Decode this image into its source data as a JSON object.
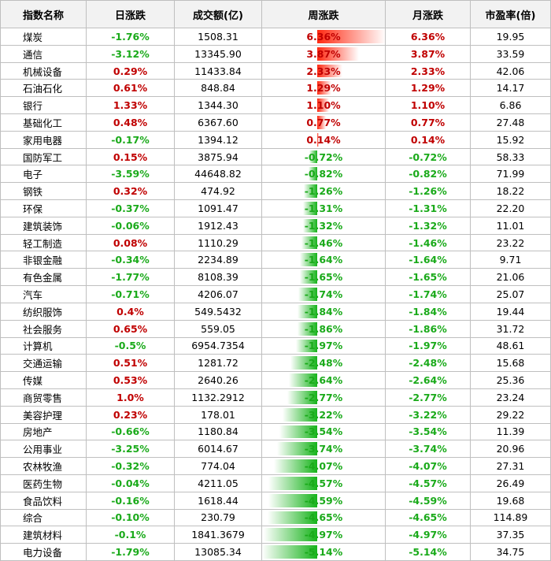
{
  "table": {
    "header": [
      "指数名称",
      "日涨跌",
      "成交额(亿)",
      "周涨跌",
      "月涨跌",
      "市盈率(倍)"
    ],
    "rows": [
      [
        "煤炭",
        "-1.76%",
        "1508.31",
        "6.36%",
        "6.36%",
        "19.95"
      ],
      [
        "通信",
        "-3.12%",
        "13345.90",
        "3.87%",
        "3.87%",
        "33.59"
      ],
      [
        "机械设备",
        "0.29%",
        "11433.84",
        "2.33%",
        "2.33%",
        "42.06"
      ],
      [
        "石油石化",
        "0.61%",
        "848.84",
        "1.29%",
        "1.29%",
        "14.17"
      ],
      [
        "银行",
        "1.33%",
        "1344.30",
        "1.10%",
        "1.10%",
        "6.86"
      ],
      [
        "基础化工",
        "0.48%",
        "6367.60",
        "0.77%",
        "0.77%",
        "27.48"
      ],
      [
        "家用电器",
        "-0.17%",
        "1394.12",
        "0.14%",
        "0.14%",
        "15.92"
      ],
      [
        "国防军工",
        "0.15%",
        "3875.94",
        "-0.72%",
        "-0.72%",
        "58.33"
      ],
      [
        "电子",
        "-3.59%",
        "44648.82",
        "-0.82%",
        "-0.82%",
        "71.99"
      ],
      [
        "钢铁",
        "0.32%",
        "474.92",
        "-1.26%",
        "-1.26%",
        "18.22"
      ],
      [
        "环保",
        "-0.37%",
        "1091.47",
        "-1.31%",
        "-1.31%",
        "22.20"
      ],
      [
        "建筑装饰",
        "-0.06%",
        "1912.43",
        "-1.32%",
        "-1.32%",
        "11.01"
      ],
      [
        "轻工制造",
        "0.08%",
        "1110.29",
        "-1.46%",
        "-1.46%",
        "23.22"
      ],
      [
        "非银金融",
        "-0.34%",
        "2234.89",
        "-1.64%",
        "-1.64%",
        "9.71"
      ],
      [
        "有色金属",
        "-1.77%",
        "8108.39",
        "-1.65%",
        "-1.65%",
        "21.06"
      ],
      [
        "汽车",
        "-0.71%",
        "4206.07",
        "-1.74%",
        "-1.74%",
        "25.07"
      ],
      [
        "纺织服饰",
        "0.4%",
        "549.5432",
        "-1.84%",
        "-1.84%",
        "19.44"
      ],
      [
        "社会服务",
        "0.65%",
        "559.05",
        "-1.86%",
        "-1.86%",
        "31.72"
      ],
      [
        "计算机",
        "-0.5%",
        "6954.7354",
        "-1.97%",
        "-1.97%",
        "48.61"
      ],
      [
        "交通运输",
        "0.51%",
        "1281.72",
        "-2.48%",
        "-2.48%",
        "15.68"
      ],
      [
        "传媒",
        "0.53%",
        "2640.26",
        "-2.64%",
        "-2.64%",
        "25.36"
      ],
      [
        "商贸零售",
        "1.0%",
        "1132.2912",
        "-2.77%",
        "-2.77%",
        "23.24"
      ],
      [
        "美容护理",
        "0.23%",
        "178.01",
        "-3.22%",
        "-3.22%",
        "29.22"
      ],
      [
        "房地产",
        "-0.66%",
        "1180.84",
        "-3.54%",
        "-3.54%",
        "11.39"
      ],
      [
        "公用事业",
        "-3.25%",
        "6014.67",
        "-3.74%",
        "-3.74%",
        "20.96"
      ],
      [
        "农林牧渔",
        "-0.32%",
        "774.04",
        "-4.07%",
        "-4.07%",
        "27.31"
      ],
      [
        "医药生物",
        "-0.04%",
        "4211.05",
        "-4.57%",
        "-4.57%",
        "26.49"
      ],
      [
        "食品饮料",
        "-0.16%",
        "1618.44",
        "-4.59%",
        "-4.59%",
        "19.68"
      ],
      [
        "综合",
        "-0.10%",
        "230.79",
        "-4.65%",
        "-4.65%",
        "114.89"
      ],
      [
        "建筑材料",
        "-0.1%",
        "1841.3679",
        "-4.97%",
        "-4.97%",
        "37.35"
      ],
      [
        "电力设备",
        "-1.79%",
        "13085.34",
        "-5.14%",
        "-5.14%",
        "34.75"
      ]
    ]
  }
}
